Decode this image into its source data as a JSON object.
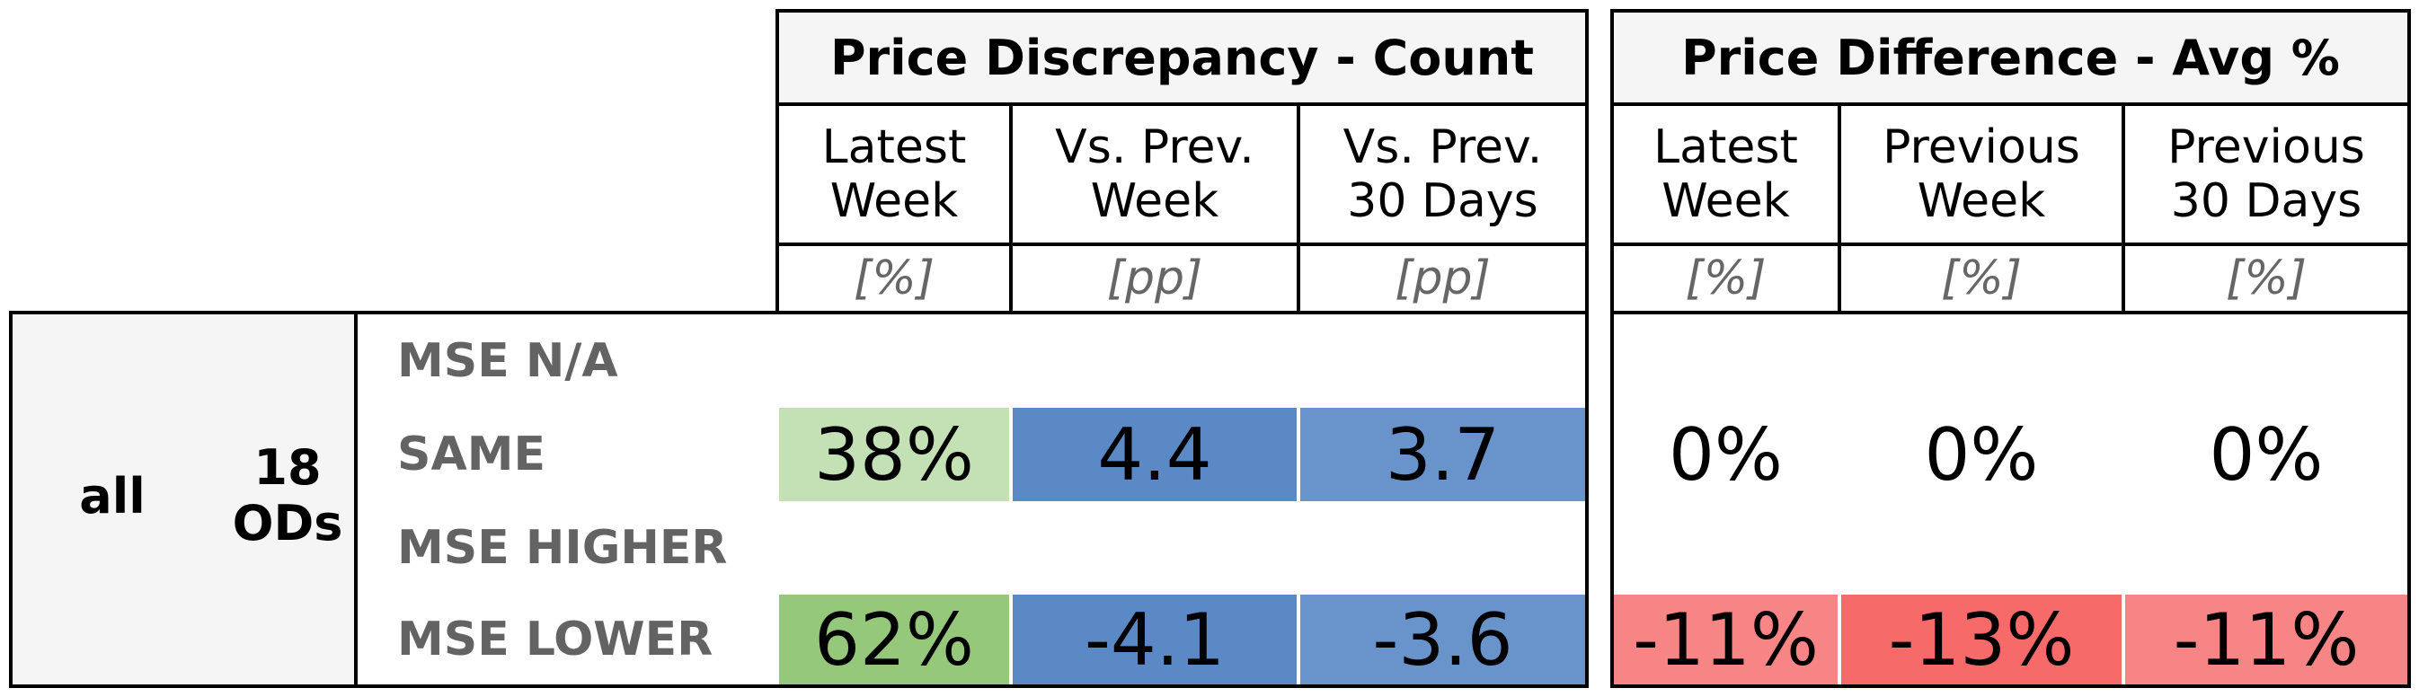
{
  "chart_data": {
    "type": "table",
    "groups": [
      {
        "title": "Price Discrepancy - Count",
        "columns": [
          {
            "label": "Latest\nWeek",
            "unit": "[%]"
          },
          {
            "label": "Vs. Prev.\nWeek",
            "unit": "[pp]"
          },
          {
            "label": "Vs. Prev.\n30 Days",
            "unit": "[pp]"
          }
        ]
      },
      {
        "title": "Price Difference - Avg %",
        "columns": [
          {
            "label": "Latest\nWeek",
            "unit": "[%]"
          },
          {
            "label": "Previous\nWeek",
            "unit": "[%]"
          },
          {
            "label": "Previous\n30 Days",
            "unit": "[%]"
          }
        ]
      }
    ],
    "segment": {
      "name": "all",
      "count": "18\nODs"
    },
    "rows": [
      {
        "label": "MSE N/A",
        "values": [
          "",
          "",
          "",
          "",
          "",
          ""
        ]
      },
      {
        "label": "SAME",
        "values": [
          "38%",
          "4.4",
          "3.7",
          "0%",
          "0%",
          "0%"
        ]
      },
      {
        "label": "MSE HIGHER",
        "values": [
          "",
          "",
          "",
          "",
          "",
          ""
        ]
      },
      {
        "label": "MSE LOWER",
        "values": [
          "62%",
          "-4.1",
          "-3.6",
          "-11%",
          "-13%",
          "-11%"
        ]
      }
    ],
    "cell_colors": [
      [
        "",
        "",
        "",
        "",
        "",
        ""
      ],
      [
        "#c3e1b4",
        "#5b89c6",
        "#6893cb",
        "",
        "",
        ""
      ],
      [
        "",
        "",
        "",
        "",
        "",
        ""
      ],
      [
        "#95c87b",
        "#5b89c6",
        "#6893cb",
        "#f78585",
        "#f66a6a",
        "#f78585"
      ]
    ]
  }
}
